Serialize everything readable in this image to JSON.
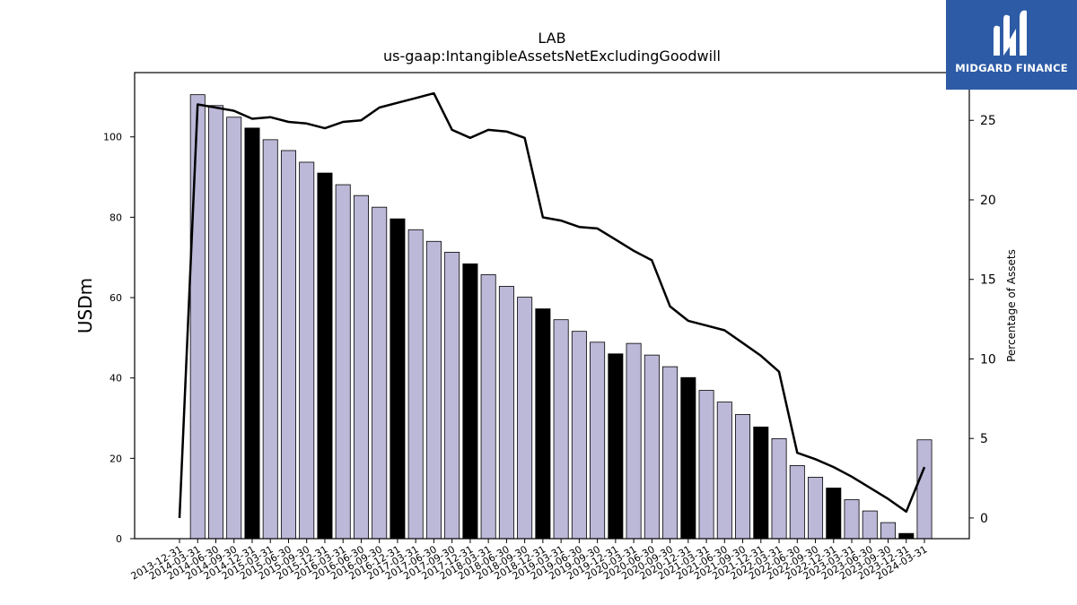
{
  "logo": {
    "text": "MIDGARD FINANCE",
    "bg_color": "#2d5ba6",
    "icon": "midgard-m-icon"
  },
  "chart_data": {
    "type": "bar",
    "title": "LAB",
    "subtitle": "us-gaap:IntangibleAssetsNetExcludingGoodwill",
    "ylabel": "USDm",
    "y2label": "Percentage of Assets",
    "ylim": [
      0,
      116
    ],
    "y2lim": [
      -1.3,
      28
    ],
    "yticks": [
      0,
      20,
      40,
      60,
      80,
      100
    ],
    "y2ticks": [
      0,
      5,
      10,
      15,
      20,
      25
    ],
    "bar_color": "#bcb8d8",
    "highlight_color": "#000000",
    "categories": [
      "2013-12-31",
      "2014-03-31",
      "2014-06-30",
      "2014-09-30",
      "2014-12-31",
      "2015-03-31",
      "2015-06-30",
      "2015-09-30",
      "2015-12-31",
      "2016-03-31",
      "2016-06-30",
      "2016-09-30",
      "2016-12-31",
      "2017-03-31",
      "2017-06-30",
      "2017-09-30",
      "2017-12-31",
      "2018-03-31",
      "2018-06-30",
      "2018-09-30",
      "2018-12-31",
      "2019-03-31",
      "2019-06-30",
      "2019-09-30",
      "2019-12-31",
      "2020-03-31",
      "2020-06-30",
      "2020-09-30",
      "2020-12-31",
      "2021-03-31",
      "2021-06-30",
      "2021-09-30",
      "2021-12-31",
      "2022-03-31",
      "2022-06-30",
      "2022-09-30",
      "2022-12-31",
      "2023-03-31",
      "2023-06-30",
      "2023-09-30",
      "2023-12-31",
      "2024-03-31"
    ],
    "series": [
      {
        "type": "bar",
        "values": [
          0,
          110.5,
          107.8,
          104.9,
          102.2,
          99.3,
          96.6,
          93.7,
          91.0,
          88.1,
          85.4,
          82.5,
          79.6,
          76.9,
          74.0,
          71.3,
          68.4,
          65.7,
          62.8,
          60.1,
          57.2,
          54.5,
          51.6,
          48.9,
          46.0,
          48.6,
          45.7,
          42.8,
          40.1,
          36.9,
          34.0,
          30.9,
          27.8,
          24.9,
          18.2,
          15.3,
          12.6,
          9.7,
          6.9,
          4.0,
          1.3,
          24.6
        ],
        "highlight_indices": [
          4,
          8,
          12,
          16,
          20,
          24,
          28,
          32,
          36,
          40
        ]
      },
      {
        "type": "line",
        "axis": "right",
        "values": [
          0.0,
          26.0,
          25.8,
          25.6,
          25.1,
          25.2,
          24.9,
          24.8,
          24.5,
          24.9,
          25.0,
          25.8,
          26.1,
          26.4,
          26.7,
          24.4,
          23.9,
          24.4,
          24.3,
          23.9,
          18.9,
          18.7,
          18.3,
          18.2,
          17.5,
          16.8,
          16.2,
          13.3,
          12.4,
          12.1,
          11.8,
          11.0,
          10.2,
          9.2,
          4.1,
          3.7,
          3.2,
          2.6,
          1.9,
          1.2,
          0.4,
          3.2
        ]
      }
    ]
  }
}
